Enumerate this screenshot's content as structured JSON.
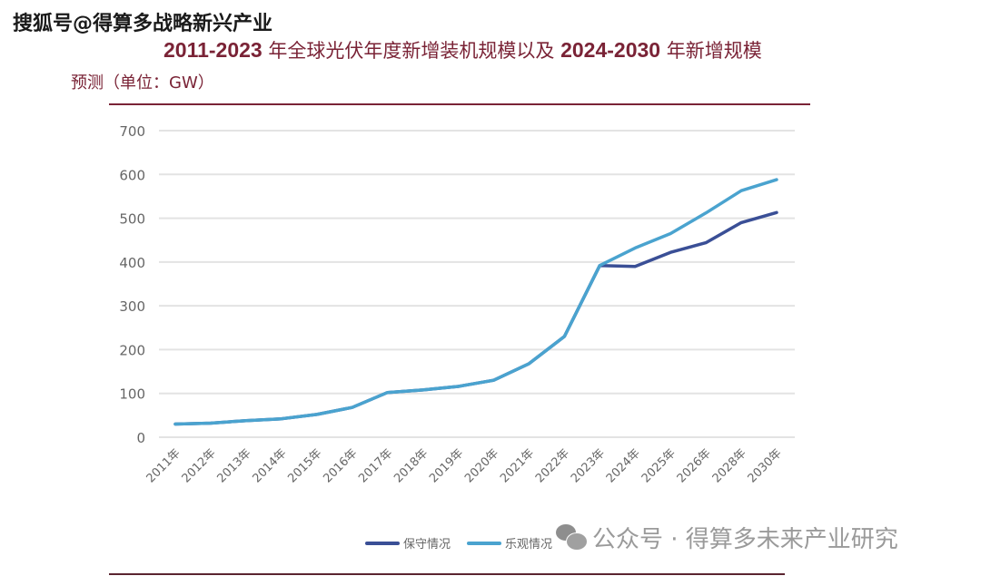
{
  "watermark_top": "搜狐号@得算多战略新兴产业",
  "title": {
    "line1_num1": "2011-2023",
    "line1_text1": " 年全球光伏年度新增装机规模以及 ",
    "line1_num2": "2024-2030",
    "line1_text2": " 年新增规模",
    "line2": "预测（单位：GW）"
  },
  "watermark_bottom": "公众号 · 得算多未来产业研究",
  "colors": {
    "conservative": "#3a4f96",
    "optimistic": "#4aa3cf",
    "title": "#7a2336",
    "grid": "#e3e3e3",
    "tick": "#666666"
  },
  "chart_data": {
    "type": "line",
    "title": "2011-2023 年全球光伏年度新增装机规模以及 2024-2030 年新增规模预测（单位：GW）",
    "xlabel": "",
    "ylabel": "",
    "ylim": [
      0,
      700
    ],
    "yticks": [
      "0",
      "100",
      "200",
      "300",
      "400",
      "500",
      "600",
      "700"
    ],
    "grid": true,
    "legend_position": "bottom",
    "categories": [
      "2011年",
      "2012年",
      "2013年",
      "2014年",
      "2015年",
      "2016年",
      "2017年",
      "2018年",
      "2019年",
      "2020年",
      "2021年",
      "2022年",
      "2023年",
      "2024年",
      "2025年",
      "2026年",
      "2028年",
      "2030年"
    ],
    "series": [
      {
        "name": "保守情况",
        "values": [
          30,
          32,
          38,
          42,
          52,
          68,
          102,
          108,
          116,
          130,
          168,
          230,
          392,
          390,
          422,
          444,
          490,
          513
        ]
      },
      {
        "name": "乐观情况",
        "values": [
          30,
          32,
          38,
          42,
          52,
          68,
          102,
          108,
          116,
          130,
          168,
          230,
          392,
          432,
          465,
          512,
          563,
          588
        ]
      }
    ]
  }
}
